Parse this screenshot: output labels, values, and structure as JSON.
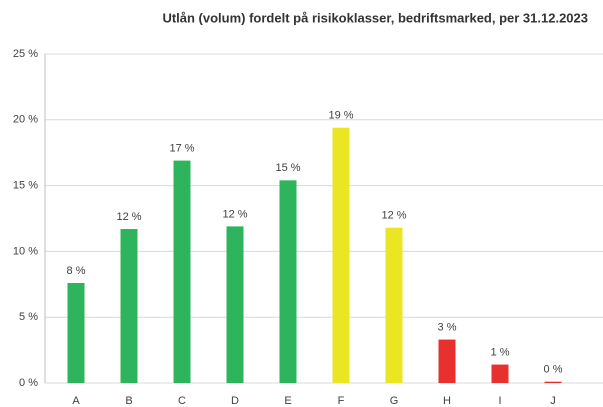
{
  "chart_data": {
    "type": "bar",
    "title": "Utlån (volum) fordelt på risikoklasser, bedriftsmarked, per 31.12.2023",
    "categories": [
      "A",
      "B",
      "C",
      "D",
      "E",
      "F",
      "G",
      "H",
      "I",
      "J"
    ],
    "values": [
      7.6,
      11.7,
      16.9,
      11.9,
      15.4,
      19.4,
      11.8,
      3.3,
      1.4,
      0.1
    ],
    "value_labels": [
      "8 %",
      "12 %",
      "17 %",
      "12 %",
      "15 %",
      "19 %",
      "12 %",
      "3 %",
      "1 %",
      "0 %"
    ],
    "colors": [
      "#2eb45c",
      "#2eb45c",
      "#2eb45c",
      "#2eb45c",
      "#2eb45c",
      "#ebe623",
      "#ebe623",
      "#e8302f",
      "#e8302f",
      "#e8302f"
    ],
    "ylim": [
      0,
      25
    ],
    "yticks": [
      {
        "value": 0,
        "label": "0 %"
      },
      {
        "value": 5,
        "label": "5 %"
      },
      {
        "value": 10,
        "label": "10 %"
      },
      {
        "value": 15,
        "label": "15 %"
      },
      {
        "value": 20,
        "label": "20 %"
      },
      {
        "value": 25,
        "label": "25 %"
      }
    ],
    "grid": true
  }
}
